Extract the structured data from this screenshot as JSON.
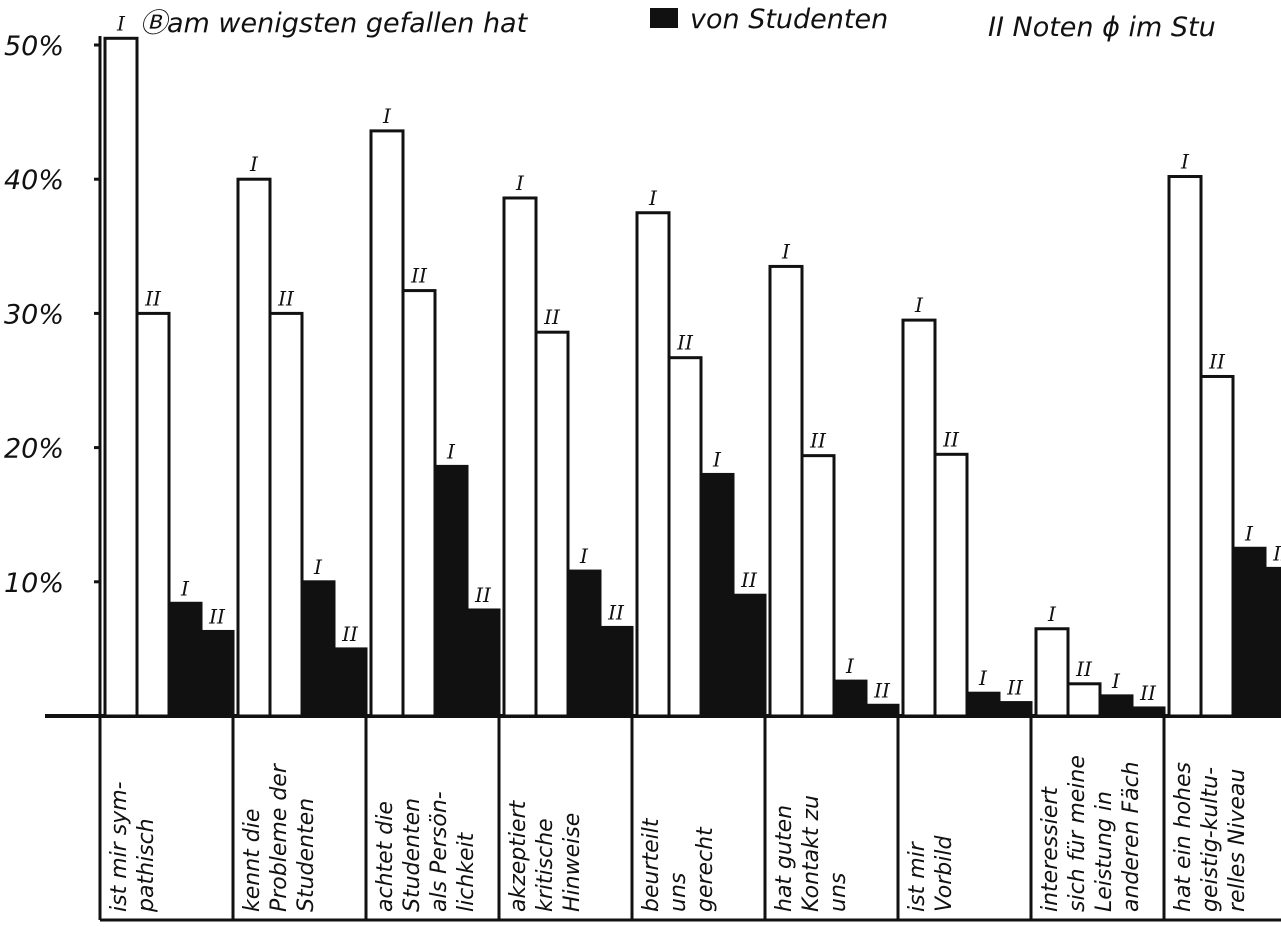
{
  "chart_data": {
    "type": "bar",
    "header": [
      "Ⓑam wenigsten gefallen hat",
      "von Studenten",
      "II Noten ϕ im Stu"
    ],
    "categories": [
      [
        "ist mir sym-",
        "pathisch"
      ],
      [
        "kennt die",
        "Probleme der",
        "Studenten"
      ],
      [
        "achtet die",
        "Studenten",
        "als Persön-",
        "lichkeit"
      ],
      [
        "akzeptiert",
        "kritische",
        "Hinweise"
      ],
      [
        "beurteilt",
        "uns",
        "gerecht"
      ],
      [
        "hat guten",
        "Kontakt zu",
        "uns"
      ],
      [
        "ist mir",
        "Vorbild"
      ],
      [
        "interessiert",
        "sich für meine",
        "Leistung in",
        "anderen Fäch"
      ],
      [
        "hat ein hohes",
        "geistig-kultu-",
        "relles Niveau"
      ]
    ],
    "series": [
      {
        "name": "I",
        "color": "#ffffff",
        "values": [
          50.5,
          40,
          43.6,
          38.6,
          37.5,
          33.5,
          29.5,
          6.5,
          40.2
        ]
      },
      {
        "name": "II",
        "color": "#ffffff",
        "values": [
          30,
          30,
          31.7,
          28.6,
          26.7,
          19.4,
          19.5,
          2.4,
          25.3
        ]
      },
      {
        "name": "I",
        "color": "#111111",
        "values": [
          8.4,
          10,
          18.6,
          10.8,
          18,
          2.6,
          1.7,
          1.5,
          12.5
        ]
      },
      {
        "name": "II",
        "color": "#111111",
        "values": [
          6.3,
          5,
          7.9,
          6.6,
          9,
          0.8,
          1,
          0.6,
          11
        ]
      }
    ],
    "ylim": [
      0,
      50
    ],
    "yticks": [
      {
        "value": 10,
        "label": "10%"
      },
      {
        "value": 20,
        "label": "20%"
      },
      {
        "value": 30,
        "label": "30%"
      },
      {
        "value": 40,
        "label": "40%"
      },
      {
        "value": 50,
        "label": "50%"
      }
    ]
  }
}
